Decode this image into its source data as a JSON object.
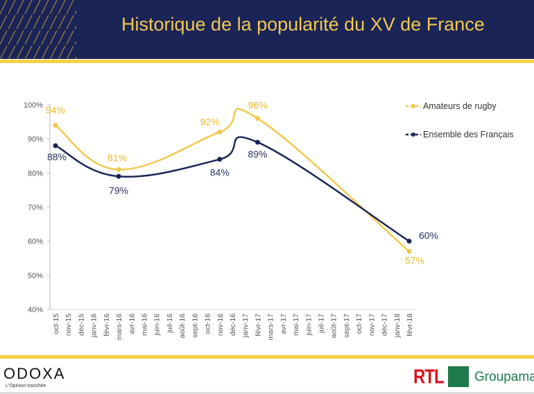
{
  "header": {
    "title": "Historique de la popularité du XV de France"
  },
  "footer": {
    "brand": "ODOXA",
    "tagline": "L'Opinion tranchée",
    "partner1": "RTL",
    "partner2": "Groupama"
  },
  "colors": {
    "amateurs": "#f2c94c",
    "ensemble": "#1b2457",
    "navy": "#1b2457",
    "gold": "#f6d046"
  },
  "chart_data": {
    "type": "line",
    "title": "Historique de la popularité du XV de France",
    "categories": [
      "oct-15",
      "nov-15",
      "déc-15",
      "janv-16",
      "févr-16",
      "mars-16",
      "avr-16",
      "mai-16",
      "juin-16",
      "juil-16",
      "août-16",
      "sept-16",
      "oct-16",
      "nov-16",
      "déc-16",
      "janv-17",
      "févr-17",
      "mars-17",
      "avr-17",
      "mai-17",
      "juin-17",
      "juil-17",
      "août-17",
      "sept-17",
      "oct-17",
      "nov-17",
      "déc-17",
      "janv-18",
      "févr-18"
    ],
    "yticks": [
      "40%",
      "50%",
      "60%",
      "70%",
      "80%",
      "90%",
      "100%"
    ],
    "ylim": [
      40,
      100
    ],
    "legend_position": "top-right",
    "series": [
      {
        "name": "Amateurs de rugby",
        "color": "#f2c94c",
        "points": [
          {
            "x": "oct-15",
            "y": 94,
            "label": "94%"
          },
          {
            "x": "mars-16",
            "y": 81,
            "label": "81%"
          },
          {
            "x": "nov-16",
            "y": 92,
            "label": "92%"
          },
          {
            "x": "févr-17",
            "y": 96,
            "label": "96%"
          },
          {
            "x": "févr-18",
            "y": 57,
            "label": "57%"
          }
        ]
      },
      {
        "name": "Ensemble des Français",
        "color": "#1b2457",
        "points": [
          {
            "x": "oct-15",
            "y": 88,
            "label": "88%"
          },
          {
            "x": "mars-16",
            "y": 79,
            "label": "79%"
          },
          {
            "x": "nov-16",
            "y": 84,
            "label": "84%"
          },
          {
            "x": "févr-17",
            "y": 89,
            "label": "89%"
          },
          {
            "x": "févr-18",
            "y": 60,
            "label": "60%"
          }
        ]
      }
    ]
  }
}
